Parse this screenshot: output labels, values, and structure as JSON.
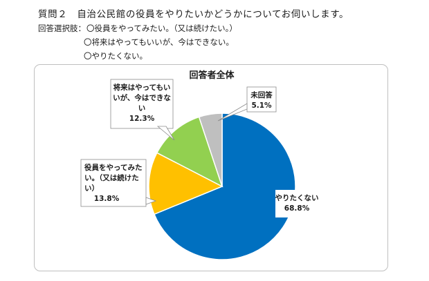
{
  "question": {
    "title": "質問２　自治公民館の役員をやりたいかどうかについてお伺いします。",
    "options_label": "回答選択肢：",
    "options": [
      "〇役員をやってみたい。（又は続けたい。）",
      "〇将来はやってもいいが、今はできない。",
      "〇やりたくない。"
    ]
  },
  "chart_data": {
    "type": "pie",
    "title": "回答者全体",
    "slices": [
      {
        "label_lines": [
          "やりたくない"
        ],
        "value": 68.8,
        "value_text": "68.8%",
        "color": "#0070C0"
      },
      {
        "label_lines": [
          "役員をやってみた",
          "い。（又は続けた",
          "い）"
        ],
        "value": 13.8,
        "value_text": "13.8%",
        "color": "#FFC000"
      },
      {
        "label_lines": [
          "将来はやってもい",
          "いが、今はできな",
          "い"
        ],
        "value": 12.3,
        "value_text": "12.3%",
        "color": "#92D050"
      },
      {
        "label_lines": [
          "未回答"
        ],
        "value": 5.1,
        "value_text": "5.1%",
        "color": "#BFBFBF"
      }
    ]
  }
}
